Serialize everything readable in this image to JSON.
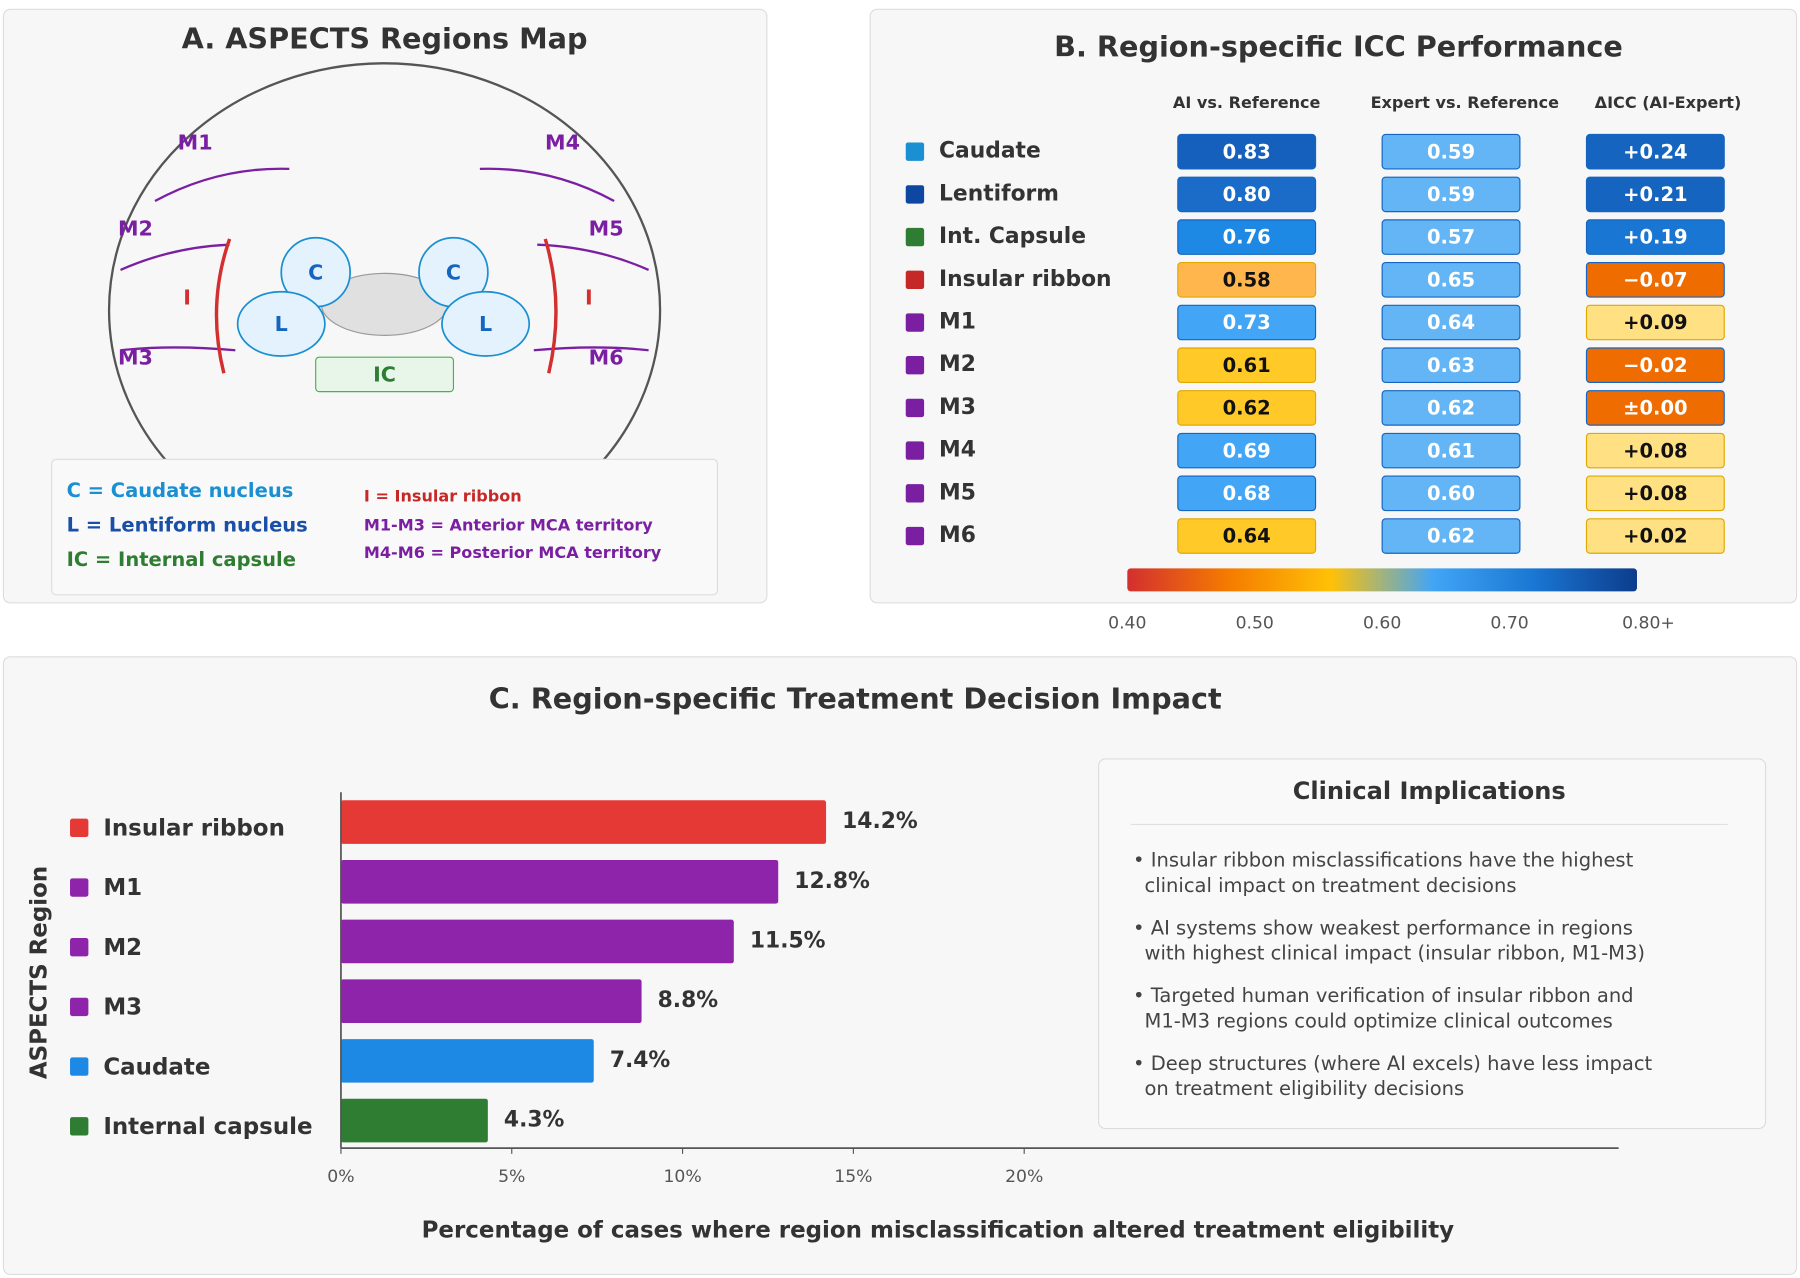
{
  "panel_a": {
    "title": "A. ASPECTS Regions Map",
    "regions": {
      "m1": "M1",
      "m2": "M2",
      "m3": "M3",
      "m4": "M4",
      "m5": "M5",
      "m6": "M6",
      "i_left": "I",
      "i_right": "I",
      "c_left": "C",
      "c_right": "C",
      "l_left": "L",
      "l_right": "L",
      "ic": "IC"
    },
    "legend": [
      "C = Caudate nucleus",
      "L = Lentiform nucleus",
      "IC = Internal capsule",
      "I = Insular ribbon",
      "M1-M3 = Anterior MCA territory",
      "M4-M6 = Posterior MCA territory"
    ]
  },
  "panel_b": {
    "title": "B. Region-specific ICC Performance",
    "columns": [
      "AI vs. Reference",
      "Expert vs. Reference",
      "ΔICC (AI-Expert)"
    ],
    "regions": [
      "Caudate",
      "Lentiform",
      "Int. Capsule",
      "Insular ribbon",
      "M1",
      "M2",
      "M3",
      "M4",
      "M5",
      "M6"
    ],
    "region_colors": [
      "#1a8fd1",
      "#0d47a1",
      "#2e7d32",
      "#c62828",
      "#7b1fa2",
      "#7b1fa2",
      "#7b1fa2",
      "#7b1fa2",
      "#7b1fa2",
      "#7b1fa2"
    ],
    "ai": [
      "0.83",
      "0.80",
      "0.76",
      "0.58",
      "0.73",
      "0.61",
      "0.62",
      "0.69",
      "0.68",
      "0.64"
    ],
    "ai_colors": [
      "#1560bd",
      "#1a6cc8",
      "#1e88e5",
      "#ffb74d",
      "#42a5f5",
      "#ffca28",
      "#ffca28",
      "#42a5f5",
      "#42a5f5",
      "#ffca28"
    ],
    "expert": [
      "0.59",
      "0.59",
      "0.57",
      "0.65",
      "0.64",
      "0.63",
      "0.62",
      "0.61",
      "0.60",
      "0.62"
    ],
    "expert_colors": [
      "#64b5f6",
      "#64b5f6",
      "#64b5f6",
      "#64b5f6",
      "#64b5f6",
      "#64b5f6",
      "#64b5f6",
      "#64b5f6",
      "#64b5f6",
      "#64b5f6"
    ],
    "delta": [
      "+0.24",
      "+0.21",
      "+0.19",
      "−0.07",
      "+0.09",
      "−0.02",
      "±0.00",
      "+0.08",
      "+0.08",
      "+0.02"
    ],
    "delta_colors": [
      "#1565c0",
      "#1565c0",
      "#1976d2",
      "#ef6c00",
      "#ffe082",
      "#ef6c00",
      "#ef6c00",
      "#ffe082",
      "#ffe082",
      "#ffe082"
    ],
    "colorbar": {
      "colors": [
        "#d32f2f",
        "#f57c00",
        "#ffc107",
        "#42a5f5",
        "#1976d2",
        "#0d3c8c"
      ],
      "ticks": [
        "0.40",
        "0.50",
        "0.60",
        "0.70",
        "0.80+"
      ]
    }
  },
  "chart_data": {
    "type": "barh",
    "title": "C. Region-specific Treatment Decision Impact",
    "categories": [
      "Insular ribbon",
      "M1",
      "M2",
      "M3",
      "Caudate",
      "Internal capsule"
    ],
    "values": [
      14.2,
      12.8,
      11.5,
      8.8,
      7.4,
      4.3
    ],
    "value_labels": [
      "14.2%",
      "12.8%",
      "11.5%",
      "8.8%",
      "7.4%",
      "4.3%"
    ],
    "colors": [
      "#e53935",
      "#8e24aa",
      "#8e24aa",
      "#8e24aa",
      "#1e88e5",
      "#2e7d32"
    ],
    "xlim": [
      0,
      37.4
    ],
    "xticks": [
      {
        "value": 0,
        "label": "0%"
      },
      {
        "value": 5,
        "label": "5%"
      },
      {
        "value": 10,
        "label": "10%"
      },
      {
        "value": 15,
        "label": "15%"
      },
      {
        "value": 20,
        "label": "20%"
      }
    ],
    "xlabel": "Percentage of cases where region misclassification altered treatment eligibility",
    "ylabel": "ASPECTS Region",
    "annotation": {
      "title": "Clinical Implications",
      "bullets": [
        [
          "• Insular ribbon misclassifications have the highest",
          "clinical impact on treatment decisions"
        ],
        [
          "• AI systems show weakest performance in regions",
          "with highest clinical impact (insular ribbon, M1-M3)"
        ],
        [
          "• Targeted human verification of insular ribbon and",
          "M1-M3 regions could optimize clinical outcomes"
        ],
        [
          "• Deep structures (where AI excels) have less impact",
          "on treatment eligibility decisions"
        ]
      ]
    }
  }
}
